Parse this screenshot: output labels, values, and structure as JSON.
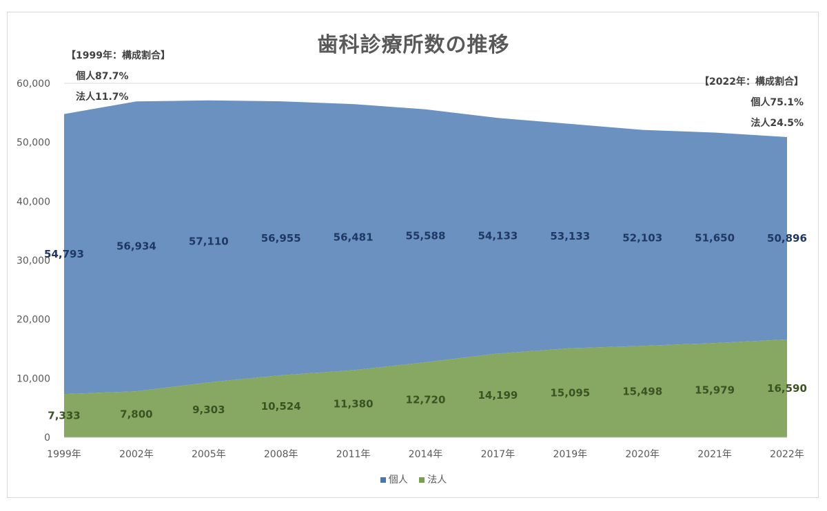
{
  "chart_data": {
    "type": "area",
    "title": "歯科診療所数の推移",
    "categories": [
      "1999年",
      "2002年",
      "2005年",
      "2008年",
      "2011年",
      "2014年",
      "2017年",
      "2019年",
      "2020年",
      "2021年",
      "2022年"
    ],
    "series": [
      {
        "name": "法人",
        "color": "#86A862",
        "values": [
          7333,
          7800,
          9303,
          10524,
          11380,
          12720,
          14199,
          15095,
          15498,
          15979,
          16590
        ]
      },
      {
        "name": "個人",
        "color": "#6A91BF",
        "total_values": [
          54793,
          56934,
          57110,
          56955,
          56481,
          55588,
          54133,
          53133,
          52103,
          51650,
          50896
        ]
      }
    ],
    "stacked": true,
    "data_labels_individual": [
      "54,793",
      "56,934",
      "57,110",
      "56,955",
      "56,481",
      "55,588",
      "54,133",
      "53,133",
      "52,103",
      "51,650",
      "50,896"
    ],
    "data_labels_corporate": [
      "7,333",
      "7,800",
      "9,303",
      "10,524",
      "11,380",
      "12,720",
      "14,199",
      "15,095",
      "15,498",
      "15,979",
      "16,590"
    ],
    "ylim": [
      0,
      60000
    ],
    "yticks": [
      "0",
      "10,000",
      "20,000",
      "30,000",
      "40,000",
      "50,000",
      "60,000"
    ],
    "grid": true,
    "legend_position": "bottom"
  },
  "annotations": {
    "left_heading": "【1999年：構成割合】",
    "left_individual": "個人87.7%",
    "left_corporate": "法人11.7%",
    "right_heading": "【2022年：構成割合】",
    "right_individual": "個人75.1%",
    "right_corporate": "法人24.5%"
  },
  "legend": {
    "individual": "個人",
    "corporate": "法人"
  }
}
